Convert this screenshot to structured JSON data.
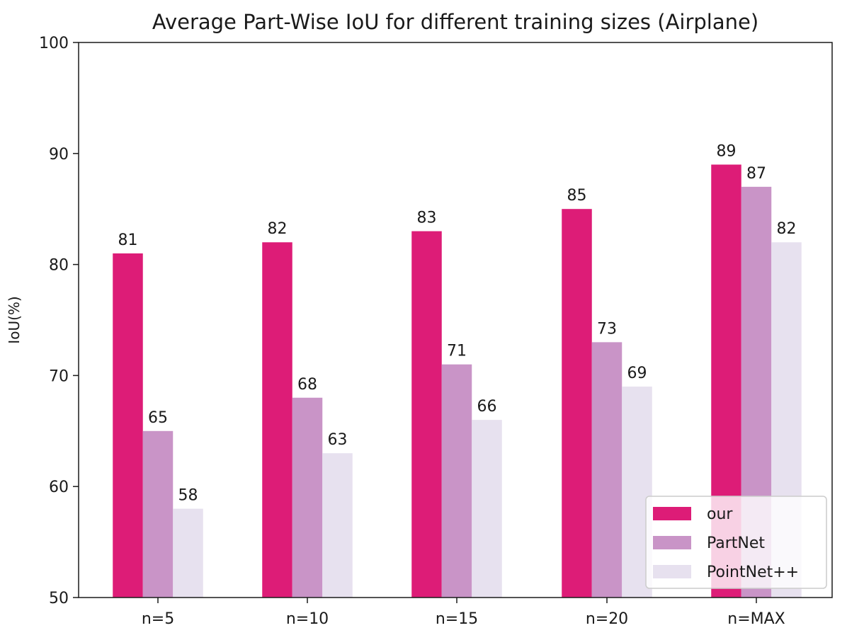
{
  "chart_data": {
    "type": "bar",
    "title": "Average Part-Wise IoU for different training sizes (Airplane)",
    "xlabel": "",
    "ylabel": "IoU(%)",
    "ylim": [
      50,
      100
    ],
    "yticks": [
      "50",
      "60",
      "70",
      "80",
      "90",
      "100"
    ],
    "categories": [
      "n=5",
      "n=10",
      "n=15",
      "n=20",
      "n=MAX"
    ],
    "series": [
      {
        "name": "our",
        "color": "#dd1c77",
        "values": [
          81,
          82,
          83,
          85,
          89
        ]
      },
      {
        "name": "PartNet",
        "color": "#c994c7",
        "values": [
          65,
          68,
          71,
          73,
          87
        ]
      },
      {
        "name": "PointNet++",
        "color": "#e7e1ef",
        "values": [
          58,
          63,
          66,
          69,
          82
        ]
      }
    ],
    "data_labels": true,
    "grid": false,
    "legend_position": "lower-right"
  }
}
